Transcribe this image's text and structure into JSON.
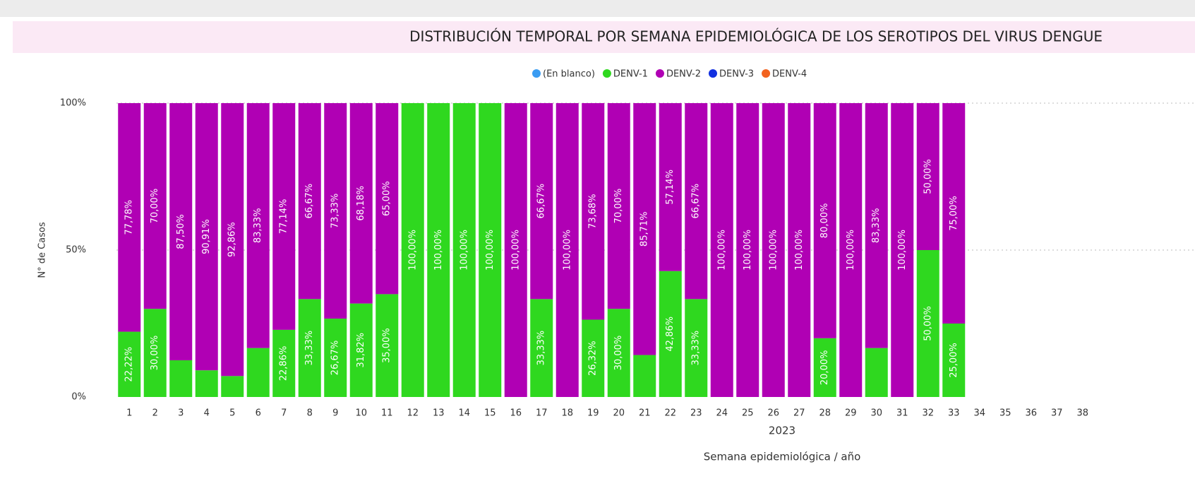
{
  "chart_data": {
    "type": "stacked_bar_100",
    "title": "DISTRIBUCIÓN TEMPORAL POR SEMANA EPIDEMIOLÓGICA DE LOS SEROTIPOS DEL VIRUS DENGUE",
    "y_label": "N° de Casos",
    "x_label": "Semana epidemiológica / año",
    "x_group_label": "2023",
    "categories": [
      "1",
      "2",
      "3",
      "4",
      "5",
      "6",
      "7",
      "8",
      "9",
      "10",
      "11",
      "12",
      "13",
      "14",
      "15",
      "16",
      "17",
      "18",
      "19",
      "20",
      "21",
      "22",
      "23",
      "24",
      "25",
      "26",
      "27",
      "28",
      "29",
      "30",
      "31",
      "32",
      "33",
      "34",
      "35",
      "36",
      "37",
      "38"
    ],
    "series": [
      {
        "name": "(En blanco)",
        "color": "#3a9cf2",
        "values": [
          null,
          null,
          null,
          null,
          null,
          null,
          null,
          null,
          null,
          null,
          null,
          null,
          null,
          null,
          null,
          null,
          null,
          null,
          null,
          null,
          null,
          null,
          null,
          null,
          null,
          null,
          null,
          null,
          null,
          null,
          null,
          null,
          null,
          null,
          null,
          null,
          null,
          null
        ]
      },
      {
        "name": "DENV-1",
        "color": "#2fd81f",
        "values": [
          22.22,
          30,
          12.5,
          9.09,
          7.14,
          16.67,
          22.86,
          33.33,
          26.67,
          31.82,
          35,
          100,
          100,
          100,
          100,
          0,
          33.33,
          0,
          26.32,
          30,
          14.29,
          42.86,
          33.33,
          0,
          0,
          0,
          0,
          20,
          0,
          16.67,
          0,
          50,
          25,
          null,
          null,
          null,
          null,
          null
        ],
        "value_labels": [
          "22,22%",
          "30,00%",
          null,
          null,
          null,
          null,
          "22,86%",
          "33,33%",
          "26,67%",
          "31,82%",
          "35,00%",
          "100,00%",
          "100,00%",
          "100,00%",
          "100,00%",
          null,
          "33,33%",
          null,
          "26,32%",
          "30,00%",
          null,
          "42,86%",
          "33,33%",
          null,
          null,
          null,
          null,
          "20,00%",
          null,
          null,
          null,
          "50,00%",
          "25,00%",
          null,
          null,
          null,
          null,
          null
        ]
      },
      {
        "name": "DENV-2",
        "color": "#b000b4",
        "values": [
          77.78,
          70,
          87.5,
          90.91,
          92.86,
          83.33,
          77.14,
          66.67,
          73.33,
          68.18,
          65,
          0,
          0,
          0,
          0,
          100,
          66.67,
          100,
          73.68,
          70,
          85.71,
          57.14,
          66.67,
          100,
          100,
          100,
          100,
          80,
          100,
          83.33,
          100,
          50,
          75,
          null,
          null,
          null,
          null,
          null
        ],
        "value_labels": [
          "77,78%",
          "70,00%",
          "87,50%",
          "90,91%",
          "92,86%",
          "83,33%",
          "77,14%",
          "66,67%",
          "73,33%",
          "68,18%",
          "65,00%",
          null,
          null,
          null,
          null,
          "100,00%",
          "66,67%",
          "100,00%",
          "73,68%",
          "70,00%",
          "85,71%",
          "57,14%",
          "66,67%",
          "100,00%",
          "100,00%",
          "100,00%",
          "100,00%",
          "80,00%",
          "100,00%",
          "83,33%",
          "100,00%",
          "50,00%",
          "75,00%",
          null,
          null,
          null,
          null,
          null
        ]
      },
      {
        "name": "DENV-3",
        "color": "#1230e0",
        "values": [
          null,
          null,
          null,
          null,
          null,
          null,
          null,
          null,
          null,
          null,
          null,
          null,
          null,
          null,
          null,
          null,
          null,
          null,
          null,
          null,
          null,
          null,
          null,
          null,
          null,
          null,
          null,
          null,
          null,
          null,
          null,
          null,
          null,
          null,
          null,
          null,
          null,
          null
        ]
      },
      {
        "name": "DENV-4",
        "color": "#f2621e",
        "values": [
          null,
          null,
          null,
          null,
          null,
          null,
          null,
          null,
          null,
          null,
          null,
          null,
          null,
          null,
          null,
          null,
          null,
          null,
          null,
          null,
          null,
          null,
          null,
          null,
          null,
          null,
          null,
          null,
          null,
          null,
          null,
          null,
          null,
          null,
          null,
          null,
          null,
          null
        ]
      }
    ],
    "ylim": [
      0,
      100
    ],
    "yticks": [
      {
        "value": 0,
        "label": "0%"
      },
      {
        "value": 50,
        "label": "50%"
      },
      {
        "value": 100,
        "label": "100%"
      }
    ],
    "grid": true
  }
}
